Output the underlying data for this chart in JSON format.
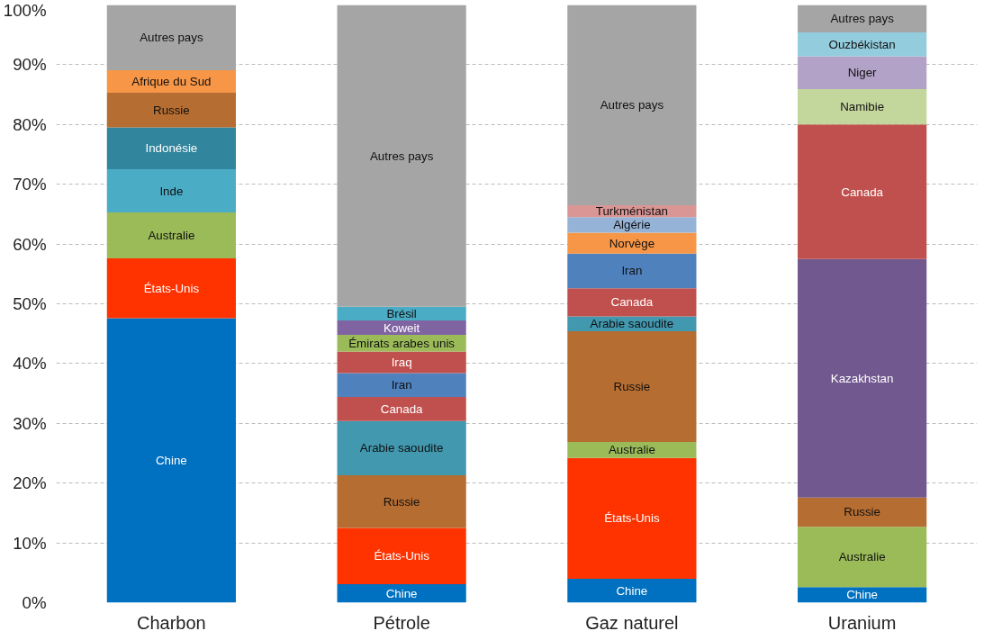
{
  "chart_data": {
    "type": "bar",
    "stacked": true,
    "categories": [
      "Charbon",
      "Pétrole",
      "Gaz naturel",
      "Uranium"
    ],
    "ylim": [
      0,
      100
    ],
    "yticks": [
      {
        "value": 0,
        "label": "0%"
      },
      {
        "value": 10,
        "label": "10%"
      },
      {
        "value": 20,
        "label": "20%"
      },
      {
        "value": 30,
        "label": "30%"
      },
      {
        "value": 40,
        "label": "40%"
      },
      {
        "value": 50,
        "label": "50%"
      },
      {
        "value": 60,
        "label": "60%"
      },
      {
        "value": 70,
        "label": "70%"
      },
      {
        "value": 80,
        "label": "80%"
      },
      {
        "value": 90,
        "label": "90%"
      },
      {
        "value": 100,
        "label": "100%"
      }
    ],
    "grid": "y",
    "series": [
      {
        "name": "Chine",
        "color": "#0070c0",
        "values": [
          47.6,
          3.1,
          4.0,
          2.6
        ]
      },
      {
        "name": "États-Unis",
        "color": "#ff3300",
        "values": [
          10.0,
          9.4,
          20.2,
          null
        ]
      },
      {
        "name": "Australie",
        "color": "#9bbb59",
        "values": [
          7.7,
          null,
          2.7,
          10.1
        ]
      },
      {
        "name": "Inde",
        "color": "#4bacc6",
        "values": [
          7.2,
          null,
          null,
          null
        ]
      },
      {
        "name": "Indonésie",
        "color": "#31859c",
        "values": [
          7.0,
          null,
          null,
          null
        ]
      },
      {
        "name": "Russie",
        "color": "#b66d31",
        "values": [
          5.8,
          8.8,
          18.5,
          4.9
        ]
      },
      {
        "name": "Afrique du Sud",
        "color": "#f79646",
        "values": [
          3.8,
          null,
          null,
          null
        ]
      },
      {
        "name": "Kazakhstan",
        "color": "#71588f",
        "values": [
          null,
          null,
          null,
          39.9
        ]
      },
      {
        "name": "Arabie saoudite",
        "color": "#4198af",
        "values": [
          null,
          9.1,
          2.5,
          null
        ]
      },
      {
        "name": "Canada",
        "color": "#c0504d",
        "values": [
          null,
          4.0,
          4.7,
          22.5
        ]
      },
      {
        "name": "Iran",
        "color": "#4f81bd",
        "values": [
          null,
          4.0,
          5.8,
          null
        ]
      },
      {
        "name": "Iraq",
        "color": "#c0504d",
        "values": [
          null,
          3.6,
          null,
          null
        ]
      },
      {
        "name": "Émirats arabes unis",
        "color": "#9bbb59",
        "values": [
          null,
          2.8,
          null,
          null
        ]
      },
      {
        "name": "Koweit",
        "color": "#8064a2",
        "values": [
          null,
          2.4,
          null,
          null
        ]
      },
      {
        "name": "Brésil",
        "color": "#4bacc6",
        "values": [
          null,
          2.3,
          null,
          null
        ]
      },
      {
        "name": "Norvège",
        "color": "#f79646",
        "values": [
          null,
          null,
          3.5,
          null
        ]
      },
      {
        "name": "Algérie",
        "color": "#95b3d7",
        "values": [
          null,
          null,
          2.6,
          null
        ]
      },
      {
        "name": "Turkménistan",
        "color": "#d99694",
        "values": [
          null,
          null,
          2.0,
          null
        ]
      },
      {
        "name": "Namibie",
        "color": "#c3d69b",
        "values": [
          null,
          null,
          null,
          5.9
        ]
      },
      {
        "name": "Niger",
        "color": "#b3a2c7",
        "values": [
          null,
          null,
          null,
          5.5
        ]
      },
      {
        "name": "Ouzbékistan",
        "color": "#93cddd",
        "values": [
          null,
          null,
          null,
          4.0
        ]
      },
      {
        "name": "Autres pays",
        "color": "#a5a5a5",
        "values": [
          10.9,
          50.5,
          33.5,
          4.6
        ]
      }
    ]
  }
}
